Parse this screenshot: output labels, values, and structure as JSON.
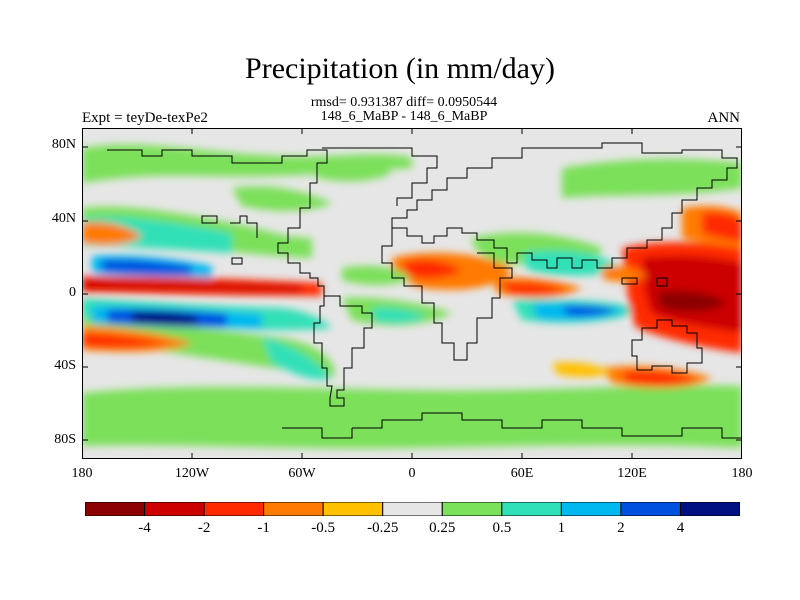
{
  "title": "Precipitation (in mm/day)",
  "stats_line": "rmsd= 0.931387 diff= 0.0950544",
  "case_line": "148_6_MaBP - 148_6_MaBP",
  "left_label": "Expt = teyDe-texPe2",
  "right_label": "ANN",
  "y_ticks": [
    {
      "value": 80,
      "label": "80N"
    },
    {
      "value": 40,
      "label": "40N"
    },
    {
      "value": 0,
      "label": "0"
    },
    {
      "value": -40,
      "label": "40S"
    },
    {
      "value": -80,
      "label": "80S"
    }
  ],
  "x_ticks": [
    {
      "value": -180,
      "label": "180"
    },
    {
      "value": -120,
      "label": "120W"
    },
    {
      "value": -60,
      "label": "60W"
    },
    {
      "value": 0,
      "label": "0"
    },
    {
      "value": 60,
      "label": "60E"
    },
    {
      "value": 120,
      "label": "120E"
    },
    {
      "value": 180,
      "label": "180"
    }
  ],
  "colorbar": {
    "colors": [
      "#8b0000",
      "#cc0000",
      "#ff2a00",
      "#ff7a00",
      "#ffc000",
      "#e6e6e6",
      "#7be05a",
      "#30e0b8",
      "#00b8f0",
      "#0050e0",
      "#001080"
    ],
    "labels": [
      "-4",
      "-2",
      "-1",
      "-0.5",
      "-0.25",
      "0.25",
      "0.5",
      "1",
      "2",
      "4"
    ]
  }
}
